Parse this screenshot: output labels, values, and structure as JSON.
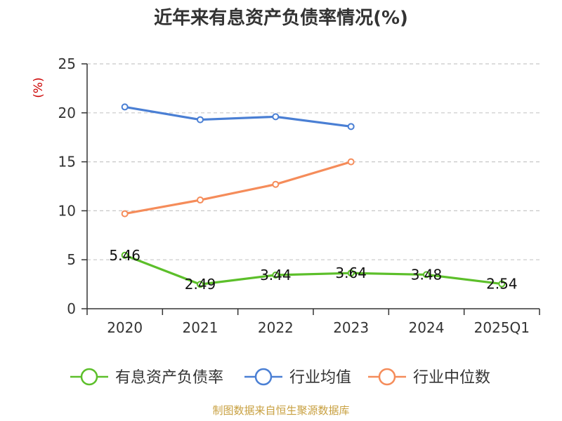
{
  "title": "近年来有息资产负债率情况(%)",
  "source": "制图数据来自恒生聚源数据库",
  "colors": {
    "series1": "#5cbf2a",
    "series2": "#4a7fd4",
    "series3": "#f58c5a",
    "unit": "#cc0000",
    "source": "#c8a040"
  },
  "chart_data": {
    "type": "line",
    "categories": [
      "2020",
      "2021",
      "2022",
      "2023",
      "2024",
      "2025Q1"
    ],
    "ylabel": "(%)",
    "ylim": [
      0,
      25
    ],
    "yticks": [
      0,
      5,
      10,
      15,
      20,
      25
    ],
    "grid": true,
    "legend_position": "bottom",
    "series": [
      {
        "name": "有息资产负债率",
        "values": [
          5.46,
          2.49,
          3.44,
          3.64,
          3.48,
          2.54
        ],
        "labels": [
          "5.46",
          "2.49",
          "3.44",
          "3.64",
          "3.48",
          "2.54"
        ]
      },
      {
        "name": "行业均值",
        "values": [
          20.6,
          19.3,
          19.6,
          18.6,
          null,
          null
        ]
      },
      {
        "name": "行业中位数",
        "values": [
          9.7,
          11.1,
          12.7,
          15.0,
          null,
          null
        ]
      }
    ]
  }
}
